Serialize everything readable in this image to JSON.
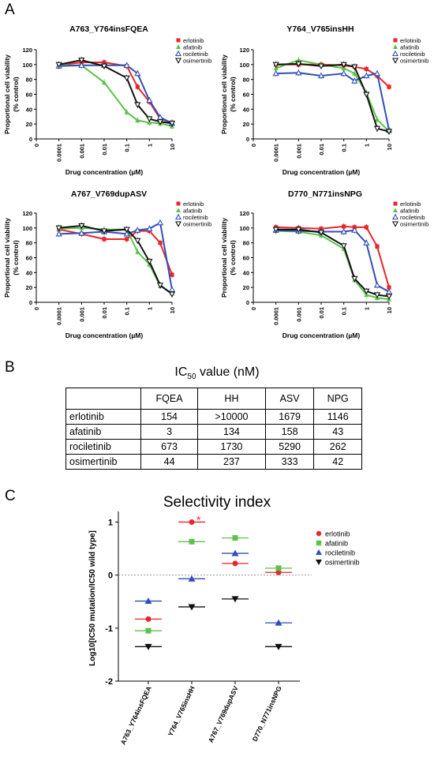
{
  "panels": {
    "a": "A",
    "b": "B",
    "c": "C"
  },
  "legend_drugs": [
    "erlotinib",
    "afatinib",
    "rociletinib",
    "osimertinib"
  ],
  "colors": {
    "erlotinib": "#e8262b",
    "afatinib": "#5bc24a",
    "rociletinib": "#2f4fb7",
    "osimertinib": "#111111"
  },
  "chart_data": [
    {
      "type": "line",
      "title": "A763_Y764insFQEA",
      "xlabel": "Drug concentration (µM)",
      "ylabel_line1": "Proportional cell viability",
      "ylabel_line2": "(% control)",
      "x_ticks": [
        "0",
        "0.0001",
        "0.001",
        "0.01",
        "0.1",
        "1",
        "10"
      ],
      "y_ticks": [
        "0",
        "20",
        "40",
        "60",
        "80",
        "100",
        "120"
      ],
      "ylim": [
        0,
        120
      ],
      "x": [
        0.0001,
        0.001,
        0.01,
        0.1,
        0.3,
        1,
        3,
        10
      ],
      "series": [
        {
          "name": "erlotinib",
          "values": [
            99,
            103,
            103,
            98,
            70,
            50,
            27,
            22
          ]
        },
        {
          "name": "afatinib",
          "values": [
            99,
            99,
            76,
            36,
            25,
            22,
            21,
            17
          ]
        },
        {
          "name": "rociletinib",
          "values": [
            98,
            99,
            99,
            99,
            88,
            52,
            29,
            21
          ]
        },
        {
          "name": "osimertinib",
          "values": [
            100,
            106,
            98,
            82,
            46,
            27,
            23,
            21
          ]
        }
      ]
    },
    {
      "type": "line",
      "title": "Y764_V765insHH",
      "xlabel": "Drug concentration (µM)",
      "ylabel_line1": "Proportional cell viability",
      "ylabel_line2": "(% control)",
      "x_ticks": [
        "0",
        "0.0001",
        "0.001",
        "0.01",
        "0.1",
        "1",
        "10"
      ],
      "y_ticks": [
        "0",
        "20",
        "40",
        "60",
        "80",
        "100",
        "120"
      ],
      "ylim": [
        0,
        120
      ],
      "x": [
        0.0001,
        0.001,
        0.01,
        0.1,
        0.3,
        1,
        3,
        10
      ],
      "series": [
        {
          "name": "erlotinib",
          "values": [
            100,
            100,
            100,
            99,
            97,
            94,
            85,
            70
          ]
        },
        {
          "name": "afatinib",
          "values": [
            95,
            106,
            100,
            95,
            88,
            62,
            26,
            10
          ]
        },
        {
          "name": "rociletinib",
          "values": [
            88,
            89,
            85,
            88,
            78,
            85,
            88,
            12
          ]
        },
        {
          "name": "osimertinib",
          "values": [
            100,
            101,
            98,
            100,
            97,
            60,
            14,
            10
          ]
        }
      ]
    },
    {
      "type": "line",
      "title": "A767_V769dupASV",
      "xlabel": "Drug concentration (µM)",
      "ylabel_line1": "Proportional cell viability",
      "ylabel_line2": "(% control)",
      "x_ticks": [
        "0",
        "0.0001",
        "0.001",
        "0.01",
        "0.1",
        "1",
        "10"
      ],
      "y_ticks": [
        "0",
        "20",
        "40",
        "60",
        "80",
        "100",
        "120"
      ],
      "ylim": [
        0,
        120
      ],
      "x": [
        0.0001,
        0.001,
        0.01,
        0.1,
        0.3,
        1,
        3,
        10
      ],
      "series": [
        {
          "name": "erlotinib",
          "values": [
            98,
            92,
            85,
            85,
            96,
            96,
            80,
            37
          ]
        },
        {
          "name": "afatinib",
          "values": [
            99,
            100,
            98,
            98,
            68,
            51,
            22,
            12
          ]
        },
        {
          "name": "rociletinib",
          "values": [
            92,
            93,
            95,
            92,
            97,
            99,
            107,
            17
          ]
        },
        {
          "name": "osimertinib",
          "values": [
            100,
            103,
            96,
            98,
            83,
            55,
            23,
            11
          ]
        }
      ]
    },
    {
      "type": "line",
      "title": "D770_N771insNPG",
      "xlabel": "Drug concentration (µM)",
      "ylabel_line1": "Proportional cell viability",
      "ylabel_line2": "(% control)",
      "x_ticks": [
        "0",
        "0.0001",
        "0.001",
        "0.01",
        "0.1",
        "1",
        "10"
      ],
      "y_ticks": [
        "0",
        "20",
        "40",
        "60",
        "80",
        "100",
        "120"
      ],
      "ylim": [
        0,
        120
      ],
      "x": [
        0.0001,
        0.001,
        0.01,
        0.1,
        0.3,
        1,
        3,
        10
      ],
      "series": [
        {
          "name": "erlotinib",
          "values": [
            101,
            100,
            99,
            102,
            101,
            101,
            75,
            20
          ]
        },
        {
          "name": "afatinib",
          "values": [
            96,
            95,
            90,
            72,
            30,
            10,
            6,
            4
          ]
        },
        {
          "name": "rociletinib",
          "values": [
            97,
            96,
            95,
            95,
            97,
            80,
            23,
            14
          ]
        },
        {
          "name": "osimertinib",
          "values": [
            98,
            98,
            94,
            76,
            32,
            15,
            10,
            8
          ]
        }
      ]
    },
    {
      "type": "table",
      "title": "IC50 value (nM)",
      "columns": [
        "",
        "FQEA",
        "HH",
        "ASV",
        "NPG"
      ],
      "rows": [
        [
          "erlotinib",
          "154",
          ">10000",
          "1679",
          "1146"
        ],
        [
          "afatinib",
          "3",
          "134",
          "158",
          "43"
        ],
        [
          "rociletinib",
          "673",
          "1730",
          "5290",
          "262"
        ],
        [
          "osimertinib",
          "44",
          "237",
          "333",
          "42"
        ]
      ]
    },
    {
      "type": "scatter",
      "title": "Selectivity index",
      "ylabel": "Log10[IC50 mutation/IC50 wild type]",
      "categories": [
        "A763_Y764insFQEA",
        "Y764_V765insHH",
        "A767_V769dupASV",
        "D770_N771insNPG"
      ],
      "y_ticks": [
        "-2",
        "-1",
        "0",
        "1"
      ],
      "ylim": [
        -2,
        1.2
      ],
      "annotation": "*",
      "series": [
        {
          "name": "erlotinib",
          "values": [
            -0.83,
            1.0,
            0.22,
            0.05
          ]
        },
        {
          "name": "afatinib",
          "values": [
            -1.05,
            0.63,
            0.7,
            0.13
          ]
        },
        {
          "name": "rociletinib",
          "values": [
            -0.49,
            -0.07,
            0.41,
            -0.9
          ]
        },
        {
          "name": "osimertinib",
          "values": [
            -1.35,
            -0.6,
            -0.45,
            -1.35
          ]
        }
      ]
    }
  ]
}
